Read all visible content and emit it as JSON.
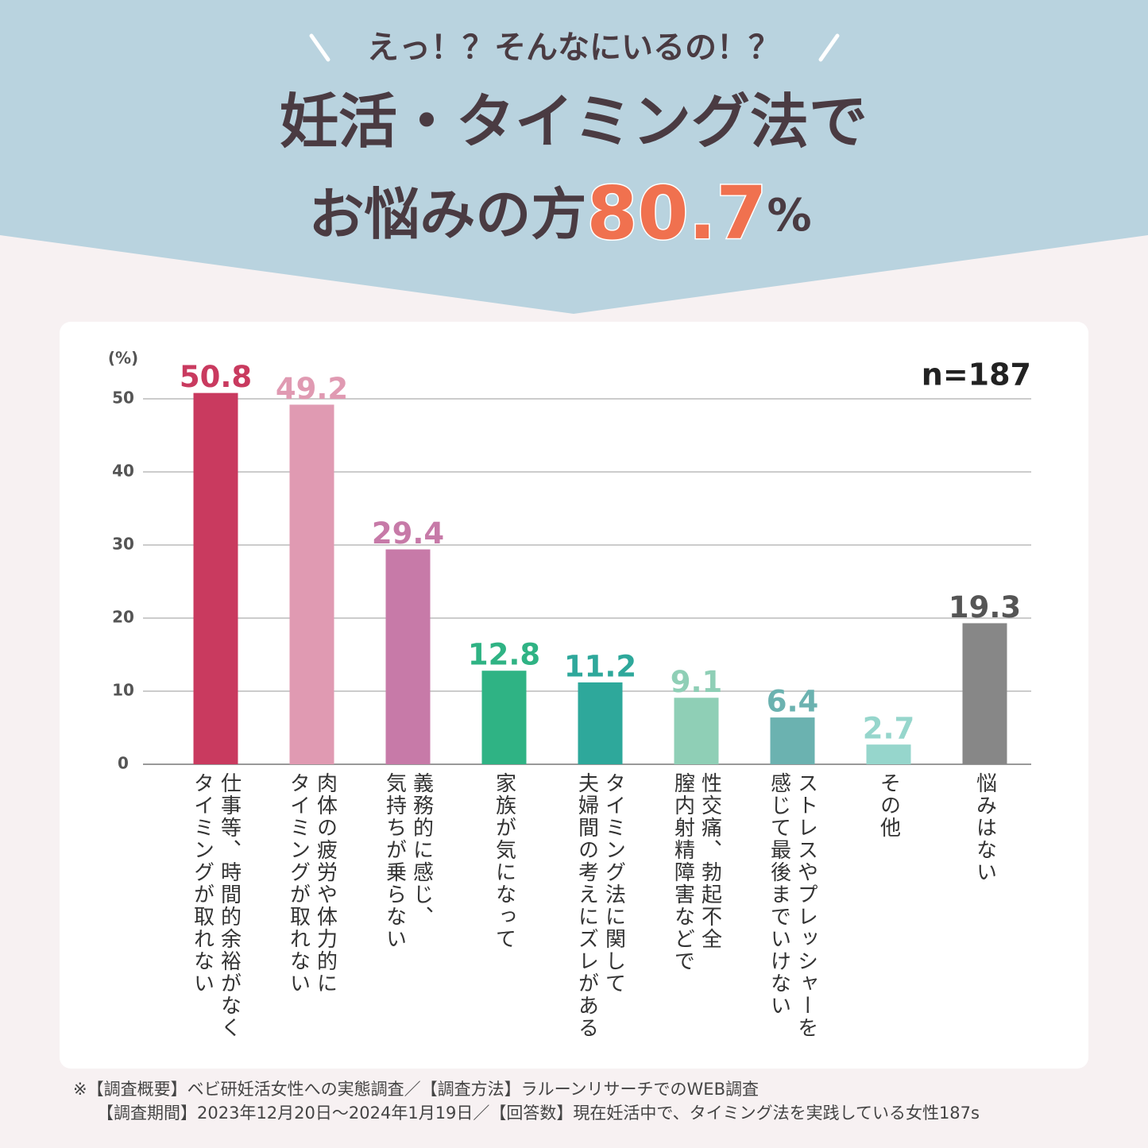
{
  "header": {
    "kicker": "えっ！？そんなにいるの！？",
    "title_line1": "妊活・タイミング法で",
    "title_line2": "お悩みの方",
    "highlight_value": 80.7,
    "highlight_unit": "%"
  },
  "chart_data": {
    "type": "bar",
    "y_unit": "(%)",
    "sample_size": "n=187",
    "categories": [
      "仕事等、時間的余裕がなく\nタイミングが取れない",
      "肉体の疲労や体力的に\nタイミングが取れない",
      "義務的に感じ、\n気持ちが乗らない",
      "家族が気になって",
      "タイミング法に関して\n夫婦間の考えにズレがある",
      "性交痛、勃起不全\n膣内射精障害などで",
      "ストレスやプレッシャーを\n感じて最後までいけない",
      "その他",
      "悩みはない"
    ],
    "values": [
      50.8,
      49.2,
      29.4,
      12.8,
      11.2,
      9.1,
      6.4,
      2.7,
      19.3
    ],
    "colors": [
      "#c93a5f",
      "#e09ab2",
      "#c77aa8",
      "#2fb384",
      "#2ea89b",
      "#8fcfb6",
      "#6bb2b0",
      "#96d6cc",
      "#878787"
    ],
    "label_colors": [
      "#c93a5f",
      "#e09ab2",
      "#c77aa8",
      "#2fb384",
      "#2ea89b",
      "#8fcfb6",
      "#6bb2b0",
      "#96d6cc",
      "#555555"
    ],
    "ylim": [
      0,
      50
    ],
    "yticks": [
      0,
      10,
      20,
      30,
      40,
      50
    ],
    "grid": true
  },
  "footnotes": [
    "※【調査概要】ベビ研妊活女性への実態調査／【調査方法】ラルーンリサーチでのWEB調査",
    "【調査期間】2023年12月20日～2024年1月19日／【回答数】現在妊活中で、タイミング法を実践している女性187s"
  ]
}
